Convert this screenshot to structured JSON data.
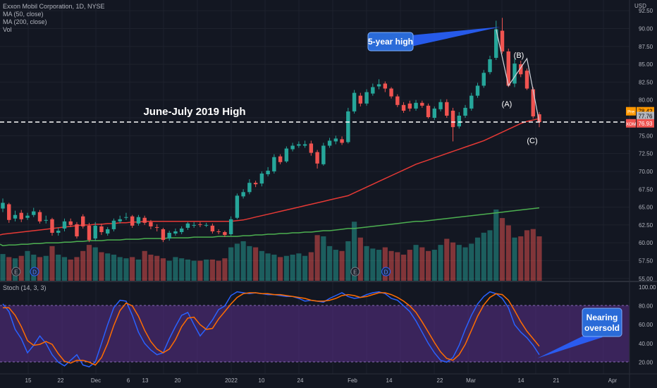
{
  "header": {
    "symbol_line": "Exxon Mobil Corporation, 1D, NYSE",
    "indicators": [
      "MA (50, close)",
      "MA (200, close)",
      "Vol"
    ],
    "currency": "USD"
  },
  "price_axis": {
    "ticks": [
      "92.50",
      "90.00",
      "87.50",
      "85.00",
      "82.50",
      "80.00",
      "77.50",
      "75.00",
      "72.50",
      "70.00",
      "67.50",
      "65.00",
      "62.50",
      "60.00",
      "57.50",
      "55.00"
    ],
    "ylim": [
      55,
      94
    ],
    "badges": {
      "pre_label": "Pre",
      "pre_value": "78.42",
      "last_value": "77.76",
      "symbol_label": "XOM",
      "symbol_value": "76.93"
    },
    "colors": {
      "pre": "#ff9800",
      "last": "#b2b5be",
      "symbol": "#ef5350"
    }
  },
  "osc_axis": {
    "ticks": [
      "100.00",
      "80.00",
      "60.00",
      "40.00",
      "20.00"
    ],
    "ylim": [
      8,
      108
    ],
    "band": [
      20,
      80
    ]
  },
  "time_axis": {
    "labels": [
      "15",
      "22",
      "Dec",
      "6",
      "13",
      "20",
      "2022",
      "10",
      "24",
      "Feb",
      "14",
      "22",
      "Mar",
      "14",
      "21",
      "Apr"
    ]
  },
  "annotations": {
    "five_year_high": "5-year high",
    "june_july_high": "June-July 2019 High",
    "wave_a": "(A)",
    "wave_b": "(B)",
    "wave_c": "(C)",
    "nearing_oversold": "Nearing oversold",
    "earnings_marker": "E",
    "dividend_marker": "D"
  },
  "stoch_label": "Stoch (14, 3, 3)",
  "chart_data": {
    "type": "candlestick",
    "dates": [
      "2021-11-09",
      "2021-11-10",
      "2021-11-11",
      "2021-11-12",
      "2021-11-15",
      "2021-11-16",
      "2021-11-17",
      "2021-11-18",
      "2021-11-19",
      "2021-11-22",
      "2021-11-23",
      "2021-11-24",
      "2021-11-26",
      "2021-11-29",
      "2021-11-30",
      "2021-12-01",
      "2021-12-02",
      "2021-12-03",
      "2021-12-06",
      "2021-12-07",
      "2021-12-08",
      "2021-12-09",
      "2021-12-10",
      "2021-12-13",
      "2021-12-14",
      "2021-12-15",
      "2021-12-16",
      "2021-12-17",
      "2021-12-20",
      "2021-12-21",
      "2021-12-22",
      "2021-12-23",
      "2021-12-27",
      "2021-12-28",
      "2021-12-29",
      "2021-12-30",
      "2021-12-31",
      "2022-01-03",
      "2022-01-04",
      "2022-01-05",
      "2022-01-06",
      "2022-01-07",
      "2022-01-10",
      "2022-01-11",
      "2022-01-12",
      "2022-01-13",
      "2022-01-14",
      "2022-01-18",
      "2022-01-19",
      "2022-01-20",
      "2022-01-21",
      "2022-01-24",
      "2022-01-25",
      "2022-01-26",
      "2022-01-27",
      "2022-01-28",
      "2022-01-31",
      "2022-02-01",
      "2022-02-02",
      "2022-02-03",
      "2022-02-04",
      "2022-02-07",
      "2022-02-08",
      "2022-02-09",
      "2022-02-10",
      "2022-02-11",
      "2022-02-14",
      "2022-02-15",
      "2022-02-16",
      "2022-02-17",
      "2022-02-18",
      "2022-02-22",
      "2022-02-23",
      "2022-02-24",
      "2022-02-25",
      "2022-02-28",
      "2022-03-01",
      "2022-03-02",
      "2022-03-03",
      "2022-03-04",
      "2022-03-07",
      "2022-03-08",
      "2022-03-09",
      "2022-03-10",
      "2022-03-11",
      "2022-03-14",
      "2022-03-15",
      "2022-03-16"
    ],
    "open": [
      64.8,
      65.4,
      63.4,
      64.2,
      63.5,
      63.9,
      64.3,
      63.1,
      63.3,
      61.4,
      62.0,
      63.0,
      62.6,
      63.7,
      62.4,
      60.6,
      62.3,
      61.3,
      61.9,
      63.0,
      63.5,
      63.7,
      62.7,
      63.5,
      62.9,
      62.2,
      61.9,
      60.6,
      61.3,
      61.5,
      62.1,
      62.4,
      62.6,
      62.5,
      62.4,
      61.6,
      61.5,
      61.2,
      63.5,
      66.5,
      67.1,
      68.4,
      68.3,
      69.6,
      70.0,
      72.1,
      71.4,
      73.1,
      73.6,
      73.6,
      73.9,
      72.7,
      71.0,
      73.6,
      74.2,
      74.5,
      74.1,
      78.4,
      80.6,
      79.5,
      80.9,
      81.9,
      82.3,
      81.6,
      80.5,
      79.3,
      79.5,
      78.8,
      79.6,
      79.2,
      77.5,
      78.7,
      79.7,
      78.5,
      76.3,
      77.8,
      78.8,
      80.6,
      82.0,
      83.9,
      85.9,
      89.7,
      86.8,
      82.3,
      85.0,
      84.1,
      81.5,
      78.0
    ],
    "close": [
      65.6,
      63.2,
      63.9,
      63.3,
      63.8,
      64.4,
      63.0,
      63.2,
      61.4,
      61.7,
      63.0,
      62.5,
      60.9,
      62.3,
      60.4,
      62.4,
      61.5,
      61.9,
      63.1,
      63.3,
      63.6,
      62.4,
      63.6,
      62.8,
      62.3,
      62.1,
      60.4,
      61.4,
      61.6,
      62.0,
      62.7,
      62.5,
      62.5,
      62.5,
      61.6,
      61.5,
      61.1,
      63.3,
      66.6,
      67.1,
      68.4,
      68.2,
      69.7,
      70.1,
      72.0,
      71.3,
      73.2,
      73.6,
      73.8,
      73.8,
      72.6,
      71.1,
      73.6,
      74.3,
      74.6,
      74.0,
      78.4,
      81.0,
      79.5,
      81.1,
      81.8,
      82.2,
      81.6,
      80.5,
      79.3,
      78.5,
      78.8,
      79.6,
      79.2,
      77.6,
      78.8,
      79.7,
      77.8,
      76.2,
      77.8,
      78.9,
      80.6,
      82.0,
      83.8,
      85.7,
      89.9,
      86.8,
      82.0,
      85.1,
      83.6,
      81.6,
      77.7,
      76.9
    ],
    "high": [
      66.2,
      65.6,
      64.5,
      64.6,
      64.2,
      64.9,
      64.6,
      63.8,
      63.5,
      62.1,
      63.4,
      63.4,
      62.9,
      64.0,
      62.8,
      62.9,
      62.7,
      62.2,
      63.4,
      63.8,
      64.2,
      63.9,
      63.9,
      63.8,
      63.2,
      62.6,
      62.1,
      61.7,
      62.0,
      62.3,
      62.9,
      62.9,
      62.9,
      62.8,
      62.7,
      61.9,
      61.7,
      63.7,
      66.9,
      67.5,
      68.9,
      68.7,
      70.0,
      70.6,
      72.4,
      72.4,
      73.5,
      74.0,
      74.2,
      74.3,
      74.3,
      73.0,
      74.0,
      74.7,
      75.0,
      74.9,
      78.9,
      81.4,
      81.0,
      81.5,
      82.3,
      82.9,
      82.6,
      81.8,
      80.8,
      79.7,
      79.9,
      80.0,
      79.9,
      79.5,
      79.1,
      80.1,
      80.1,
      78.9,
      78.3,
      79.3,
      81.0,
      82.4,
      84.2,
      86.2,
      91.1,
      91.5,
      87.2,
      85.8,
      85.5,
      84.4,
      81.8,
      78.3
    ],
    "low": [
      64.3,
      62.8,
      63.0,
      62.9,
      63.2,
      63.6,
      62.7,
      62.7,
      61.0,
      61.0,
      61.6,
      62.2,
      60.6,
      62.0,
      60.1,
      60.3,
      61.1,
      61.0,
      61.6,
      62.7,
      63.2,
      62.1,
      62.4,
      62.5,
      61.9,
      61.6,
      60.1,
      60.3,
      61.0,
      61.2,
      61.8,
      62.1,
      62.2,
      62.2,
      61.3,
      61.2,
      60.8,
      61.0,
      63.3,
      66.2,
      66.8,
      67.8,
      67.9,
      69.3,
      69.7,
      71.0,
      71.2,
      72.8,
      73.3,
      73.3,
      72.2,
      70.4,
      70.8,
      73.3,
      73.8,
      73.7,
      73.9,
      78.1,
      79.1,
      79.2,
      80.6,
      81.5,
      81.1,
      80.2,
      79.0,
      78.2,
      78.4,
      78.5,
      78.9,
      77.4,
      77.2,
      78.4,
      77.5,
      74.2,
      76.0,
      77.5,
      78.5,
      80.3,
      81.7,
      83.6,
      85.6,
      86.5,
      81.8,
      81.8,
      83.2,
      81.4,
      77.4,
      76.2
    ],
    "ma50": [
      61.2,
      61.3,
      61.4,
      61.5,
      61.6,
      61.7,
      61.8,
      61.9,
      62.0,
      62.1,
      62.2,
      62.3,
      62.4,
      62.5,
      62.5,
      62.6,
      62.6,
      62.7,
      62.7,
      62.8,
      62.8,
      62.9,
      62.9,
      63.0,
      63.0,
      63.0,
      63.0,
      63.0,
      63.0,
      63.0,
      63.0,
      63.0,
      63.0,
      63.0,
      63.0,
      63.0,
      63.0,
      63.0,
      63.1,
      63.2,
      63.4,
      63.6,
      63.8,
      64.0,
      64.2,
      64.4,
      64.6,
      64.8,
      65.0,
      65.2,
      65.4,
      65.6,
      65.8,
      66.0,
      66.2,
      66.4,
      66.6,
      67.0,
      67.4,
      67.8,
      68.2,
      68.6,
      69.0,
      69.4,
      69.8,
      70.2,
      70.6,
      71.0,
      71.3,
      71.6,
      71.9,
      72.2,
      72.5,
      72.8,
      73.1,
      73.4,
      73.7,
      74.0,
      74.3,
      74.7,
      75.1,
      75.5,
      75.9,
      76.3,
      76.7,
      77.0,
      77.2,
      77.4
    ],
    "ma200": [
      59.6,
      59.7,
      59.7,
      59.8,
      59.8,
      59.9,
      59.9,
      60.0,
      60.0,
      60.0,
      60.1,
      60.1,
      60.2,
      60.2,
      60.3,
      60.3,
      60.3,
      60.4,
      60.4,
      60.4,
      60.5,
      60.5,
      60.5,
      60.6,
      60.6,
      60.6,
      60.6,
      60.7,
      60.7,
      60.7,
      60.7,
      60.8,
      60.8,
      60.8,
      60.8,
      60.9,
      60.9,
      60.9,
      60.9,
      61.0,
      61.0,
      61.1,
      61.1,
      61.2,
      61.2,
      61.3,
      61.3,
      61.4,
      61.4,
      61.5,
      61.5,
      61.6,
      61.7,
      61.7,
      61.8,
      61.9,
      62.0,
      62.0,
      62.1,
      62.2,
      62.3,
      62.4,
      62.5,
      62.6,
      62.7,
      62.8,
      62.9,
      63.0,
      63.0,
      63.1,
      63.2,
      63.3,
      63.4,
      63.5,
      63.6,
      63.7,
      63.8,
      63.9,
      64.0,
      64.1,
      64.2,
      64.3,
      64.4,
      64.5,
      64.6,
      64.7,
      64.8,
      64.9
    ],
    "volume": [
      45,
      40,
      38,
      42,
      50,
      44,
      40,
      42,
      58,
      44,
      40,
      36,
      40,
      50,
      60,
      56,
      48,
      46,
      44,
      40,
      38,
      40,
      36,
      50,
      44,
      42,
      38,
      34,
      40,
      38,
      36,
      34,
      34,
      36,
      36,
      34,
      38,
      56,
      62,
      66,
      58,
      56,
      50,
      46,
      44,
      40,
      42,
      44,
      46,
      42,
      48,
      76,
      74,
      58,
      52,
      50,
      66,
      98,
      72,
      58,
      54,
      52,
      56,
      50,
      48,
      44,
      52,
      60,
      56,
      50,
      52,
      60,
      70,
      64,
      60,
      56,
      62,
      72,
      80,
      84,
      118,
      104,
      92,
      72,
      74,
      84,
      86,
      74
    ],
    "stoch_k": [
      82,
      74,
      55,
      45,
      30,
      38,
      48,
      40,
      28,
      20,
      16,
      22,
      28,
      17,
      15,
      20,
      40,
      60,
      78,
      86,
      85,
      70,
      52,
      40,
      33,
      28,
      30,
      45,
      58,
      70,
      73,
      60,
      48,
      56,
      65,
      76,
      80,
      91,
      95,
      94,
      93,
      94,
      93,
      92,
      92,
      91,
      90,
      90,
      88,
      85,
      86,
      85,
      84,
      88,
      91,
      94,
      90,
      88,
      89,
      92,
      94,
      95,
      93,
      88,
      86,
      80,
      74,
      64,
      52,
      40,
      30,
      22,
      20,
      25,
      38,
      55,
      70,
      82,
      90,
      95,
      93,
      88,
      78,
      60,
      52,
      46,
      38,
      28
    ],
    "stoch_d": [
      78,
      78,
      70,
      58,
      43,
      38,
      39,
      42,
      39,
      29,
      21,
      19,
      22,
      22,
      20,
      17,
      25,
      40,
      59,
      75,
      83,
      80,
      69,
      54,
      42,
      34,
      30,
      34,
      44,
      58,
      67,
      68,
      60,
      55,
      56,
      66,
      74,
      82,
      89,
      93,
      94,
      94,
      93,
      93,
      92,
      92,
      91,
      90,
      89,
      88,
      86,
      85,
      85,
      86,
      88,
      91,
      92,
      91,
      89,
      90,
      92,
      94,
      94,
      92,
      89,
      85,
      80,
      73,
      63,
      52,
      41,
      31,
      24,
      22,
      28,
      39,
      54,
      69,
      81,
      89,
      93,
      92,
      86,
      75,
      63,
      53,
      45,
      37
    ],
    "earnings_index": [
      1,
      56
    ],
    "dividend_index": [
      4,
      61
    ]
  }
}
